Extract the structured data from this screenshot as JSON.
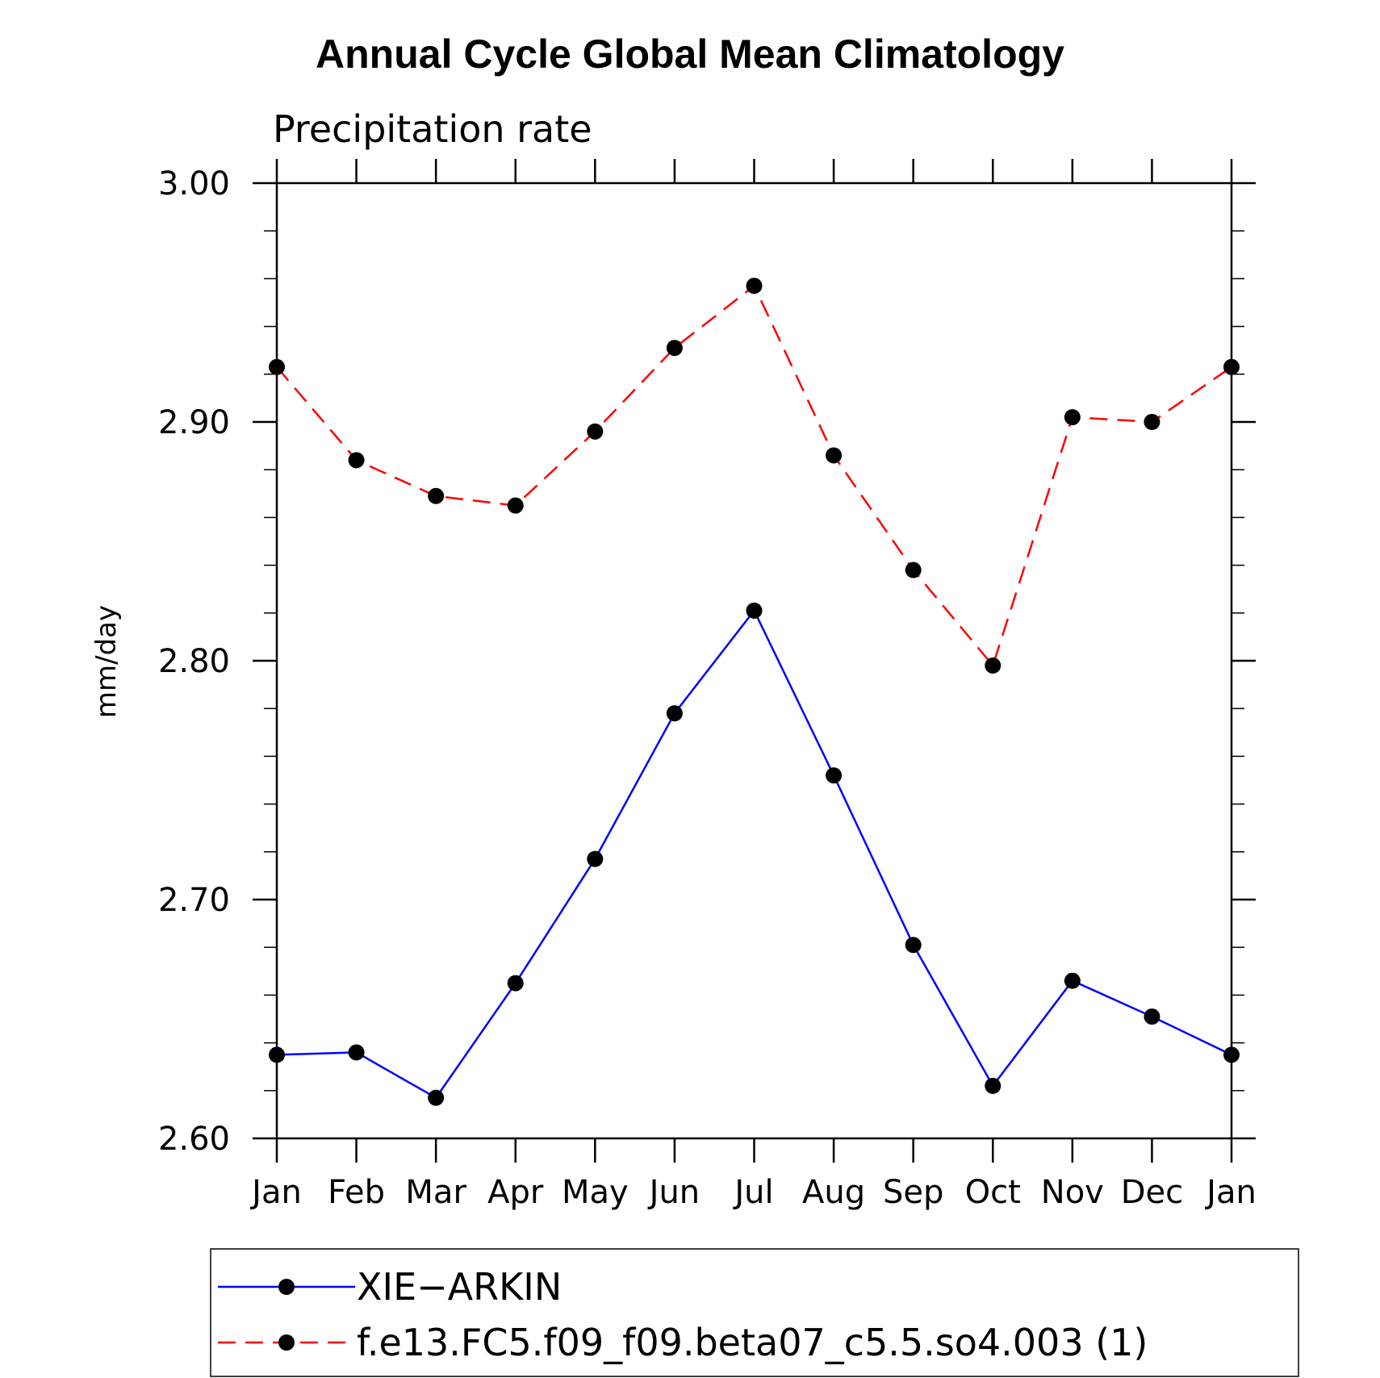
{
  "chart_data": {
    "type": "line",
    "title": "Annual Cycle Global Mean Climatology",
    "subtitle": "Precipitation rate",
    "xlabel": "",
    "ylabel": "mm/day",
    "categories": [
      "Jan",
      "Feb",
      "Mar",
      "Apr",
      "May",
      "Jun",
      "Jul",
      "Aug",
      "Sep",
      "Oct",
      "Nov",
      "Dec",
      "Jan"
    ],
    "ylim": [
      2.6,
      3.0
    ],
    "y_major_ticks": [
      2.6,
      2.7,
      2.8,
      2.9,
      3.0
    ],
    "y_tick_labels": [
      "2.60",
      "2.70",
      "2.80",
      "2.90",
      "3.00"
    ],
    "y_minor_step": 0.02,
    "grid": false,
    "legend_position": "bottom",
    "series": [
      {
        "name": "XIE−ARKIN",
        "color": "#0000ff",
        "line_style": "solid",
        "marker": "filled-circle",
        "values": [
          2.635,
          2.636,
          2.617,
          2.665,
          2.717,
          2.778,
          2.821,
          2.752,
          2.681,
          2.622,
          2.666,
          2.651,
          2.635
        ]
      },
      {
        "name": "f.e13.FC5.f09_f09.beta07_c5.5.so4.003 (1)",
        "color": "#ff0000",
        "line_style": "dashed",
        "marker": "filled-circle",
        "values": [
          2.923,
          2.884,
          2.869,
          2.865,
          2.896,
          2.931,
          2.957,
          2.886,
          2.838,
          2.798,
          2.902,
          2.9,
          2.923
        ]
      }
    ]
  }
}
